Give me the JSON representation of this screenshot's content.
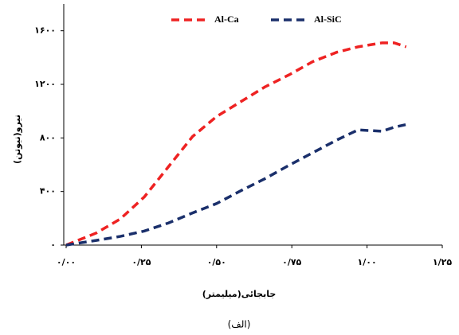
{
  "chart_data": {
    "type": "line",
    "xlabel": "جابجائی(میلیمتر)",
    "ylabel": "نیرو(نیوتن)",
    "caption": "(الف)",
    "xlim": [
      0,
      1.25
    ],
    "ylim": [
      0,
      1800
    ],
    "xticks": [
      {
        "value": 0,
        "label": "۰/۰۰"
      },
      {
        "value": 0.25,
        "label": "۰/۲۵"
      },
      {
        "value": 0.5,
        "label": "۰/۵۰"
      },
      {
        "value": 0.75,
        "label": "۰/۷۵"
      },
      {
        "value": 1,
        "label": "۱/۰۰"
      },
      {
        "value": 1.25,
        "label": "۱/۲۵"
      }
    ],
    "yticks": [
      {
        "value": 0,
        "label": "۰"
      },
      {
        "value": 400,
        "label": "۴۰۰"
      },
      {
        "value": 800,
        "label": "۸۰۰"
      },
      {
        "value": 1200,
        "label": "۱۲۰۰"
      },
      {
        "value": 1600,
        "label": "۱۶۰۰"
      }
    ],
    "x": [
      0,
      0.1,
      0.18,
      0.26,
      0.34,
      0.42,
      0.5,
      0.58,
      0.66,
      0.74,
      0.82,
      0.9,
      0.97,
      1.05,
      1.09,
      1.13
    ],
    "series": [
      {
        "name": "Al-Ca",
        "color": "#ee2222",
        "values": [
          0,
          90,
          195,
          360,
          585,
          810,
          960,
          1070,
          1180,
          1270,
          1370,
          1440,
          1480,
          1510,
          1510,
          1480
        ]
      },
      {
        "name": "Al-SiC",
        "color": "#1a2f6b",
        "values": [
          0,
          35,
          65,
          105,
          165,
          240,
          310,
          405,
          495,
          595,
          690,
          785,
          860,
          850,
          880,
          900
        ]
      }
    ],
    "legend": "top"
  }
}
